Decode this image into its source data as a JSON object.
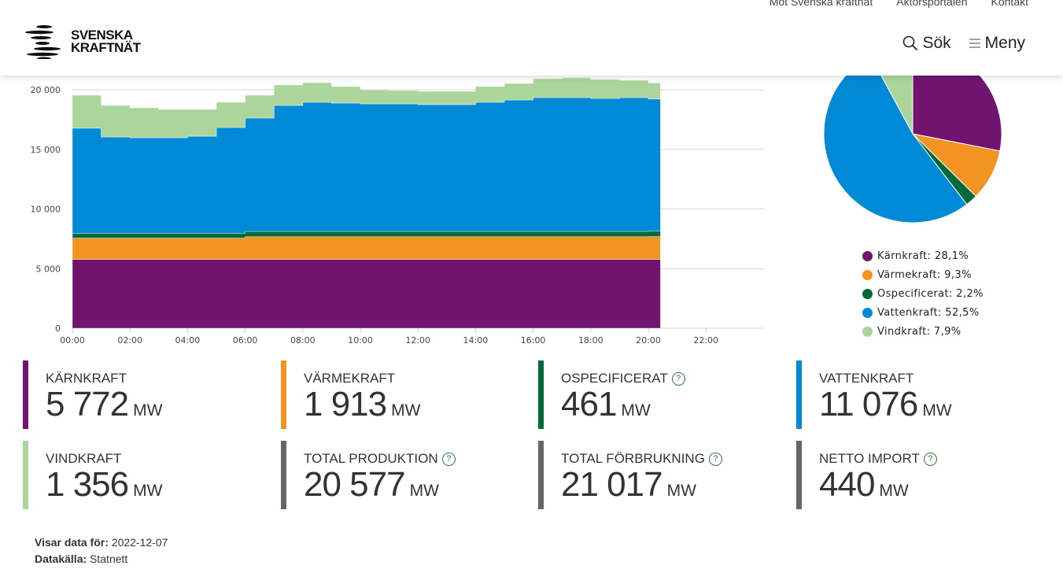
{
  "header": {
    "top_links": [
      "Mot Svenska kraftnät",
      "Aktörsportalen",
      "Kontakt"
    ],
    "logo": [
      "SVENSKA",
      "KRAFTNÄT"
    ],
    "search": "Sök",
    "menu": "Meny"
  },
  "colors": {
    "karnkraft": "#701470",
    "varmekraft": "#f39322",
    "ospecificerat": "#006a3a",
    "vattenkraft": "#008ad5",
    "vindkraft": "#acd59b",
    "total": "#666666"
  },
  "chart_data": [
    {
      "type": "area",
      "stacked": true,
      "step": true,
      "x_unit": "hour",
      "x": [
        0,
        1,
        2,
        3,
        4,
        5,
        6,
        7,
        8,
        9,
        10,
        11,
        12,
        13,
        14,
        15,
        16,
        17,
        18,
        19,
        20
      ],
      "x_end": 20.42,
      "xlim": [
        0,
        24
      ],
      "ylim": [
        0,
        20000
      ],
      "yticks": [
        {
          "v": 0,
          "l": "0"
        },
        {
          "v": 5000,
          "l": "5 000"
        },
        {
          "v": 10000,
          "l": "10 000"
        },
        {
          "v": 15000,
          "l": "15 000"
        },
        {
          "v": 20000,
          "l": "20 000"
        }
      ],
      "xticks": [
        {
          "v": 0,
          "l": "00:00"
        },
        {
          "v": 2,
          "l": "02:00"
        },
        {
          "v": 4,
          "l": "04:00"
        },
        {
          "v": 6,
          "l": "06:00"
        },
        {
          "v": 8,
          "l": "08:00"
        },
        {
          "v": 10,
          "l": "10:00"
        },
        {
          "v": 12,
          "l": "12:00"
        },
        {
          "v": 14,
          "l": "14:00"
        },
        {
          "v": 16,
          "l": "16:00"
        },
        {
          "v": 18,
          "l": "18:00"
        },
        {
          "v": 20,
          "l": "20:00"
        },
        {
          "v": 22,
          "l": "22:00"
        }
      ],
      "series": [
        {
          "name": "Kärnkraft",
          "key": "karnkraft",
          "values": [
            5772,
            5772,
            5772,
            5772,
            5772,
            5772,
            5772,
            5772,
            5772,
            5772,
            5772,
            5772,
            5772,
            5772,
            5772,
            5772,
            5772,
            5772,
            5772,
            5772,
            5772
          ]
        },
        {
          "name": "Värmekraft",
          "key": "varmekraft",
          "values": [
            1780,
            1780,
            1780,
            1780,
            1780,
            1780,
            1900,
            1900,
            1900,
            1900,
            1900,
            1900,
            1900,
            1900,
            1900,
            1900,
            1900,
            1900,
            1900,
            1900,
            1913
          ]
        },
        {
          "name": "Ospecificerat",
          "key": "ospecificerat",
          "values": [
            400,
            400,
            400,
            400,
            400,
            400,
            440,
            440,
            440,
            440,
            440,
            440,
            440,
            440,
            440,
            440,
            440,
            440,
            440,
            440,
            461
          ]
        },
        {
          "name": "Vattenkraft",
          "key": "vattenkraft",
          "values": [
            8820,
            8090,
            8020,
            8020,
            8150,
            8880,
            9510,
            10570,
            10830,
            10770,
            10700,
            10700,
            10640,
            10640,
            10830,
            11030,
            11230,
            11230,
            11160,
            11230,
            11076
          ]
        },
        {
          "name": "Vindkraft",
          "key": "vindkraft",
          "values": [
            2770,
            2640,
            2510,
            2380,
            2250,
            2110,
            1920,
            1720,
            1650,
            1380,
            1190,
            1120,
            1120,
            1120,
            1320,
            1390,
            1580,
            1650,
            1590,
            1450,
            1356
          ]
        }
      ]
    },
    {
      "type": "pie",
      "slices": [
        {
          "name": "Kärnkraft",
          "key": "karnkraft",
          "value": 28.1,
          "label": "Kärnkraft: 28,1%"
        },
        {
          "name": "Värmekraft",
          "key": "varmekraft",
          "value": 9.3,
          "label": "Värmekraft: 9,3%"
        },
        {
          "name": "Ospecificerat",
          "key": "ospecificerat",
          "value": 2.2,
          "label": "Ospecificerat: 2,2%"
        },
        {
          "name": "Vattenkraft",
          "key": "vattenkraft",
          "value": 52.5,
          "label": "Vattenkraft: 52,5%"
        },
        {
          "name": "Vindkraft",
          "key": "vindkraft",
          "value": 7.9,
          "label": "Vindkraft: 7,9%"
        }
      ]
    }
  ],
  "cards": [
    {
      "label": "Kärnkraft",
      "value": "5 772",
      "unit": "MW",
      "key": "karnkraft",
      "help": false
    },
    {
      "label": "Värmekraft",
      "value": "1 913",
      "unit": "MW",
      "key": "varmekraft",
      "help": false
    },
    {
      "label": "Ospecificerat",
      "value": "461",
      "unit": "MW",
      "key": "ospecificerat",
      "help": true
    },
    {
      "label": "Vattenkraft",
      "value": "11 076",
      "unit": "MW",
      "key": "vattenkraft",
      "help": false
    },
    {
      "label": "Vindkraft",
      "value": "1 356",
      "unit": "MW",
      "key": "vindkraft",
      "help": false
    },
    {
      "label": "Total produktion",
      "value": "20 577",
      "unit": "MW",
      "key": "total",
      "help": true
    },
    {
      "label": "Total förbrukning",
      "value": "21 017",
      "unit": "MW",
      "key": "total",
      "help": true
    },
    {
      "label": "Netto import",
      "value": "440",
      "unit": "MW",
      "key": "total",
      "help": true
    }
  ],
  "help_glyph": "?",
  "footer": {
    "date_label": "Visar data för:",
    "date": "2022-12-07",
    "source_label": "Datakälla:",
    "source": "Statnett"
  }
}
